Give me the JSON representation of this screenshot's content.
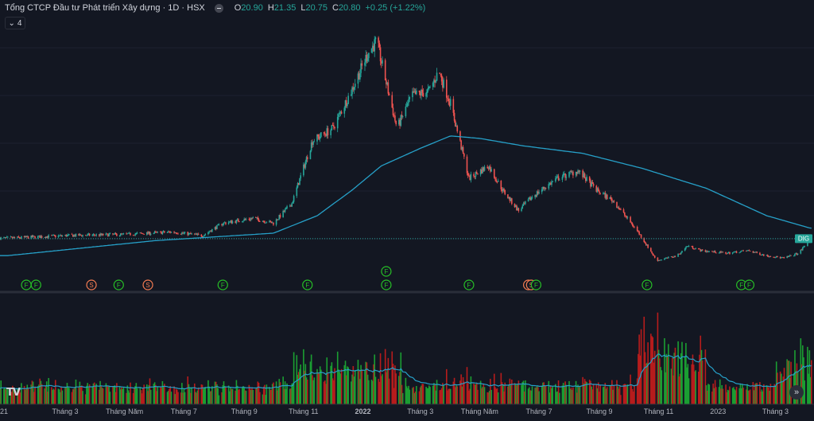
{
  "legend": {
    "title": "Tổng CTCP Đầu tư Phát triển Xây dựng · 1D · HSX",
    "open_label": "O",
    "open": "20.90",
    "high_label": "H",
    "high": "21.35",
    "low_label": "L",
    "low": "20.75",
    "close_label": "C",
    "close": "20.80",
    "change": "+0.25 (+1.22%)"
  },
  "collapse_count": "4",
  "price_tag": "DIG",
  "colors": {
    "background": "#131722",
    "up": "#26a69a",
    "down": "#ef5350",
    "vol_up": "#1b9e32",
    "vol_down": "#b71c1c",
    "ma": "#26a0c8",
    "event": "#27c027",
    "split": "#f57c52"
  },
  "chart_data": {
    "type": "candlestick",
    "title": "Tổng CTCP Đầu tư Phát triển Xây dựng · 1D · HSX",
    "x_ticks": [
      "21",
      "Tháng 3",
      "Tháng Năm",
      "Tháng 7",
      "Tháng 9",
      "Tháng 11",
      "2022",
      "Tháng 3",
      "Tháng Năm",
      "Tháng 7",
      "Tháng 9",
      "Tháng 11",
      "2023",
      "Tháng 3"
    ],
    "last_close": 20.8,
    "price_anchors": [
      [
        "2021-01-01",
        21
      ],
      [
        "2021-03-01",
        22
      ],
      [
        "2021-05-01",
        22.5
      ],
      [
        "2021-06-20",
        23.5
      ],
      [
        "2021-07-20",
        22
      ],
      [
        "2021-08-10",
        27
      ],
      [
        "2021-09-10",
        29
      ],
      [
        "2021-10-01",
        27
      ],
      [
        "2021-10-20",
        35
      ],
      [
        "2021-11-10",
        60
      ],
      [
        "2021-12-01",
        65
      ],
      [
        "2021-12-20",
        80
      ],
      [
        "2022-01-06",
        95
      ],
      [
        "2022-01-15",
        100
      ],
      [
        "2022-02-05",
        65
      ],
      [
        "2022-02-20",
        78
      ],
      [
        "2022-03-10",
        80
      ],
      [
        "2022-03-20",
        88
      ],
      [
        "2022-04-01",
        75
      ],
      [
        "2022-04-20",
        45
      ],
      [
        "2022-05-10",
        50
      ],
      [
        "2022-05-25",
        40
      ],
      [
        "2022-06-10",
        32
      ],
      [
        "2022-06-25",
        38
      ],
      [
        "2022-07-20",
        45
      ],
      [
        "2022-08-10",
        48
      ],
      [
        "2022-08-30",
        40
      ],
      [
        "2022-09-15",
        36
      ],
      [
        "2022-10-10",
        24
      ],
      [
        "2022-10-30",
        12
      ],
      [
        "2022-11-20",
        14
      ],
      [
        "2022-12-01",
        18
      ],
      [
        "2022-12-15",
        16
      ],
      [
        "2023-01-10",
        15
      ],
      [
        "2023-02-01",
        16
      ],
      [
        "2023-02-20",
        14
      ],
      [
        "2023-03-10",
        13
      ],
      [
        "2023-03-25",
        15
      ],
      [
        "2023-04-06",
        20.8
      ]
    ],
    "ma_anchors": [
      [
        "2021-01-01",
        14
      ],
      [
        "2021-06-01",
        20
      ],
      [
        "2021-10-01",
        23
      ],
      [
        "2021-11-15",
        30
      ],
      [
        "2021-12-20",
        40
      ],
      [
        "2022-01-20",
        50
      ],
      [
        "2022-03-01",
        57
      ],
      [
        "2022-04-01",
        62
      ],
      [
        "2022-05-01",
        61
      ],
      [
        "2022-06-15",
        58
      ],
      [
        "2022-08-15",
        55
      ],
      [
        "2022-10-15",
        49
      ],
      [
        "2022-12-20",
        41
      ],
      [
        "2023-02-20",
        30
      ],
      [
        "2023-04-06",
        25
      ]
    ],
    "events": [
      {
        "label": "F",
        "date": "2021-01-20",
        "row": 0
      },
      {
        "label": "F",
        "date": "2021-01-30",
        "row": 0
      },
      {
        "label": "S",
        "date": "2021-03-28",
        "row": 0
      },
      {
        "label": "F",
        "date": "2021-04-25",
        "row": 0
      },
      {
        "label": "S",
        "date": "2021-05-25",
        "row": 0
      },
      {
        "label": "F",
        "date": "2021-08-10",
        "row": 0
      },
      {
        "label": "F",
        "date": "2021-11-05",
        "row": 0
      },
      {
        "label": "F",
        "date": "2022-01-25",
        "row": 1
      },
      {
        "label": "F",
        "date": "2022-01-25",
        "row": 0
      },
      {
        "label": "F",
        "date": "2022-04-20",
        "row": 0
      },
      {
        "label": "S",
        "date": "2022-06-20",
        "row": 0
      },
      {
        "label": "S",
        "date": "2022-06-23",
        "row": 0
      },
      {
        "label": "F",
        "date": "2022-06-28",
        "row": 0
      },
      {
        "label": "F",
        "date": "2022-10-20",
        "row": 0
      },
      {
        "label": "F",
        "date": "2023-01-25",
        "row": 0
      },
      {
        "label": "F",
        "date": "2023-02-02",
        "row": 0
      }
    ]
  }
}
